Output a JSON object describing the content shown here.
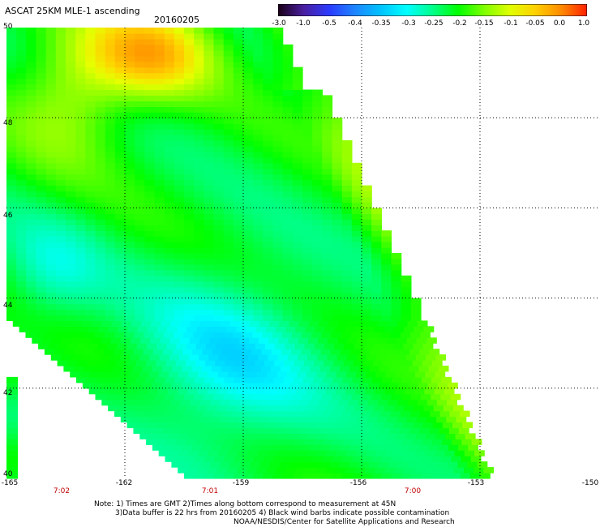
{
  "header": {
    "title": "ASCAT 25KM MLE-1 ascending",
    "date": "20160205"
  },
  "colorbar": {
    "labels": [
      "-3.0",
      "-1.0",
      "-0.5",
      "-0.4",
      "-0.35",
      "-0.3",
      "-0.25",
      "-0.2",
      "-0.15",
      "-0.1",
      "-0.05",
      "0.0",
      "1.0"
    ],
    "colors": [
      "#1a0016",
      "#4a1fa0",
      "#2b3cff",
      "#1d86ff",
      "#00c3ff",
      "#00ffff",
      "#00ff8a",
      "#00ff00",
      "#7fff00",
      "#dfff00",
      "#ffd000",
      "#ff8a00",
      "#ff2000"
    ]
  },
  "map": {
    "lat_labels": [
      "50",
      "48",
      "46",
      "44",
      "42",
      "40"
    ],
    "lon_labels": [
      "-165",
      "-162",
      "-159",
      "-156",
      "-153",
      "-150"
    ],
    "time_labels": [
      "7:02",
      "7:01",
      "7:00"
    ],
    "lat_range": [
      40,
      50
    ],
    "lon_range": [
      -165,
      -150
    ]
  },
  "footer": {
    "line1": "Note: 1) Times are GMT 2)Times along bottom correspond to measurement at 45N",
    "line2": "3)Data buffer is 22 hrs from 20160205 4) Black wind barbs indicate possible contamination",
    "line3": "NOAA/NESDIS/Center for Satellite Applications and Research"
  }
}
